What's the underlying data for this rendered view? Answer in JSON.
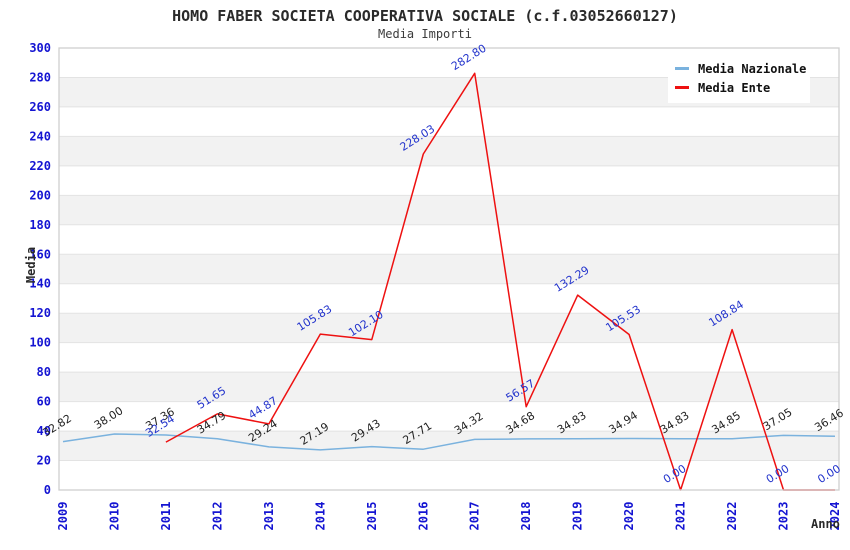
{
  "page": {
    "title": "HOMO FABER SOCIETA COOPERATIVA SOCIALE (c.f.03052660127)",
    "subtitle": "Media Importi"
  },
  "axes": {
    "y_title": "Media",
    "x_title": "Anno"
  },
  "legend": {
    "position": "top-right",
    "items": [
      {
        "label": "Media Nazionale",
        "color": "#7ab2de"
      },
      {
        "label": "Media Ente",
        "color": "#ee1111"
      }
    ]
  },
  "chart_data": {
    "type": "line",
    "title": "HOMO FABER SOCIETA COOPERATIVA SOCIALE (c.f.03052660127)",
    "subtitle": "Media Importi",
    "xlabel": "Anno",
    "ylabel": "Media",
    "categories": [
      "2009",
      "2010",
      "2011",
      "2012",
      "2013",
      "2014",
      "2015",
      "2016",
      "2017",
      "2018",
      "2019",
      "2020",
      "2021",
      "2022",
      "2023",
      "2024"
    ],
    "series": [
      {
        "name": "Media Nazionale",
        "color": "#7ab2de",
        "label_color": "#1f1f1f",
        "values": [
          32.82,
          38.0,
          37.36,
          34.79,
          29.24,
          27.19,
          29.43,
          27.71,
          34.32,
          34.68,
          34.83,
          34.94,
          34.83,
          34.85,
          37.05,
          36.46
        ]
      },
      {
        "name": "Media Ente",
        "color": "#ee1111",
        "label_color": "#2233cc",
        "values": [
          null,
          null,
          32.54,
          51.65,
          44.87,
          105.83,
          102.1,
          228.03,
          282.8,
          56.57,
          132.29,
          105.53,
          0.0,
          108.84,
          0.0,
          0.0
        ]
      }
    ],
    "ylim": [
      0,
      300
    ],
    "ytick_step": 20,
    "grid": true,
    "legend_position": "top-right",
    "style": {
      "band_colors": [
        "#ffffff",
        "#f2f2f2"
      ],
      "grid_color": "#e3e3e3",
      "border_color": "#cfcfcf",
      "tick_label_color": "#1414d2",
      "label_rotation_deg": -32
    }
  }
}
